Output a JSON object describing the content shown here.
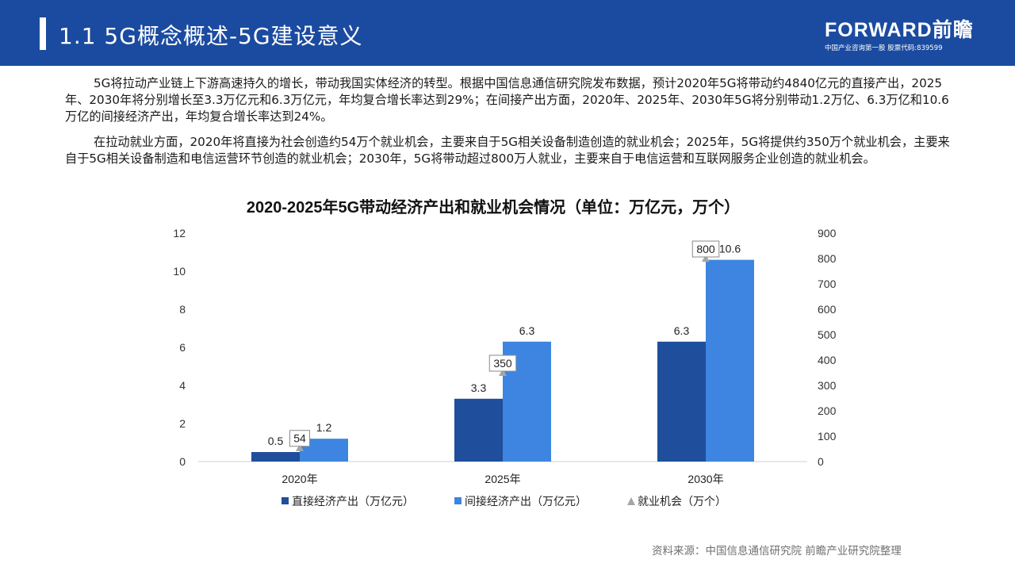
{
  "header": {
    "title": "1.1 5G概念概述-5G建设意义",
    "brand_logo": "FORWARD前瞻",
    "brand_tagline": "中国产业咨询第一股 股票代码:839599"
  },
  "paragraphs": [
    "5G将拉动产业链上下游高速持久的增长，带动我国实体经济的转型。根据中国信息通信研究院发布数据，预计2020年5G将带动约4840亿元的直接产出，2025年、2030年将分别增长至3.3万亿元和6.3万亿元，年均复合增长率达到29%；在间接产出方面，2020年、2025年、2030年5G将分别带动1.2万亿、6.3万亿和10.6万亿的间接经济产出，年均复合增长率达到24%。",
    "在拉动就业方面，2020年将直接为社会创造约54万个就业机会，主要来自于5G相关设备制造创造的就业机会；2025年，5G将提供约350万个就业机会，主要来自于5G相关设备制造和电信运营环节创造的就业机会；2030年，5G将带动超过800万人就业，主要来自于电信运营和互联网服务企业创造的就业机会。"
  ],
  "chart_data": {
    "type": "bar",
    "title": "2020-2025年5G带动经济产出和就业机会情况（单位：万亿元，万个）",
    "categories": [
      "2020年",
      "2025年",
      "2030年"
    ],
    "series": [
      {
        "name": "直接经济产出（万亿元）",
        "type": "bar",
        "axis": "left",
        "values": [
          0.5,
          3.3,
          6.3
        ],
        "labels": [
          "0.5",
          "3.3",
          "6.3"
        ],
        "color": "#1f4e9c"
      },
      {
        "name": "间接经济产出（万亿元）",
        "type": "bar",
        "axis": "left",
        "values": [
          1.2,
          6.3,
          10.6
        ],
        "labels": [
          "1.2",
          "6.3",
          "10.6"
        ],
        "color": "#3d85e0"
      },
      {
        "name": "就业机会（万个）",
        "type": "marker",
        "axis": "right",
        "values": [
          54,
          350,
          800
        ],
        "labels": [
          "54",
          "350",
          "800"
        ],
        "color": "#a6a6a6"
      }
    ],
    "y_left": {
      "min": 0,
      "max": 12,
      "ticks": [
        "0",
        "2",
        "4",
        "6",
        "8",
        "10",
        "12"
      ]
    },
    "y_right": {
      "min": 0,
      "max": 900,
      "ticks": [
        "0",
        "100",
        "200",
        "300",
        "400",
        "500",
        "600",
        "700",
        "800",
        "900"
      ]
    },
    "grid": false,
    "legend_position": "bottom"
  },
  "source": "资料来源：中国信息通信研究院 前瞻产业研究院整理"
}
